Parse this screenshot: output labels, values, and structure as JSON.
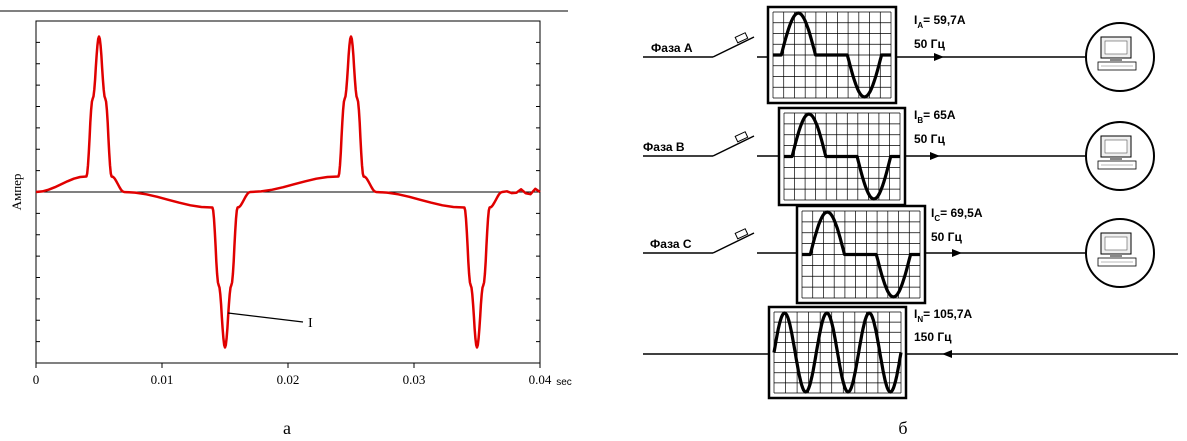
{
  "left_panel": {
    "caption": "а",
    "ylabel": "Ампер",
    "xunit": "sec",
    "curve_label": "I",
    "line_color": "#e00000",
    "chart_data": {
      "type": "line",
      "x_ticks": [
        "0",
        "0.01",
        "0.02",
        "0.03",
        "0.04"
      ],
      "xlim": [
        0,
        0.04
      ],
      "ylim": [
        -1.1,
        1.1
      ],
      "y_tick_count": 16,
      "series": [
        {
          "x": [
            0,
            0.004,
            0.0045,
            0.005,
            0.0055,
            0.006,
            0.007,
            0.014,
            0.0145,
            0.015,
            0.0155,
            0.016,
            0.017,
            0.024,
            0.0245,
            0.025,
            0.0255,
            0.026,
            0.027,
            0.034,
            0.0345,
            0.035,
            0.0355,
            0.036,
            0.037,
            0.04
          ],
          "y": [
            0,
            0.1,
            0.6,
            1.0,
            0.6,
            0.1,
            0,
            -0.1,
            -0.6,
            -1.0,
            -0.6,
            -0.1,
            0,
            0.1,
            0.6,
            1.0,
            0.6,
            0.1,
            0,
            -0.1,
            -0.6,
            -1.0,
            -0.6,
            -0.1,
            0,
            0
          ]
        }
      ]
    }
  },
  "right_panel": {
    "caption": "б",
    "phases": [
      {
        "label": "Фаза A",
        "current_sub": "A",
        "current_value": "=  59,7A",
        "freq": "50 Гц"
      },
      {
        "label": "Фаза B",
        "current_sub": "B",
        "current_value": "= 65A",
        "freq": "50 Гц"
      },
      {
        "label": "Фаза C",
        "current_sub": "C",
        "current_value": "= 69,5A",
        "freq": "50 Гц"
      }
    ],
    "neutral": {
      "current_sub": "N",
      "current_value": "= 105,7A",
      "freq": "150 Гц"
    }
  }
}
